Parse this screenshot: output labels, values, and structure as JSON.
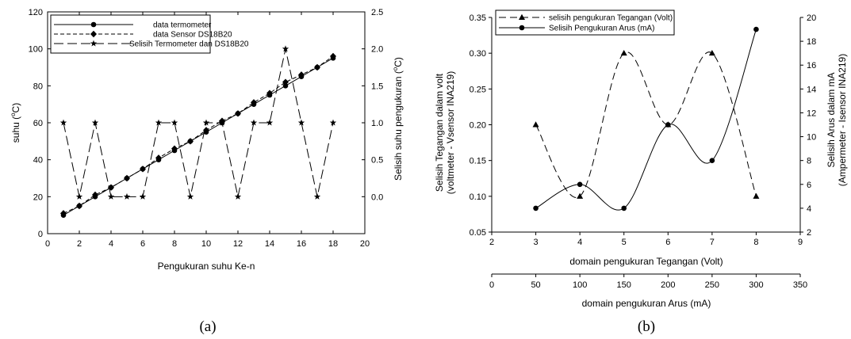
{
  "chart_data": [
    {
      "panel": "a",
      "type": "line",
      "caption": "(a)",
      "xlabel": "Pengukuran suhu Ke-n",
      "ylabel_left": "suhu (°C)",
      "ylabel_right": "Selisih suhu pengukuran (°C)",
      "xlim": [
        0,
        20
      ],
      "ylim_left": [
        0,
        120
      ],
      "ylim_right": [
        -0.5,
        2.5
      ],
      "x_ticks": [
        0,
        2,
        4,
        6,
        8,
        10,
        12,
        14,
        16,
        18,
        20
      ],
      "y_ticks_left": [
        0,
        20,
        40,
        60,
        80,
        100,
        120
      ],
      "y_ticks_right": [
        "0.0",
        "0.5",
        "1.0",
        "1.5",
        "2.0",
        "2.5"
      ],
      "grid": false,
      "legend_position": "top-left",
      "x": [
        1,
        2,
        3,
        4,
        5,
        6,
        7,
        8,
        9,
        10,
        11,
        12,
        13,
        14,
        15,
        16,
        17,
        18
      ],
      "series": [
        {
          "name": "data termometer",
          "axis": "left",
          "line": "solid",
          "marker": "circle",
          "values": [
            10,
            15,
            20,
            25,
            30,
            35,
            40,
            45,
            50,
            55,
            60,
            65,
            70,
            75,
            80,
            85,
            90,
            95
          ]
        },
        {
          "name": "data Sensor DS18B20",
          "axis": "left",
          "line": "short-dash",
          "marker": "diamond",
          "values": [
            11,
            15,
            21,
            25,
            30,
            35,
            41,
            46,
            50,
            56,
            61,
            65,
            71,
            76,
            82,
            86,
            90,
            96
          ]
        },
        {
          "name": "Selisih Termometer dan DS18B20",
          "axis": "right",
          "line": "long-dash",
          "marker": "star",
          "values": [
            1,
            0,
            1,
            0,
            0,
            0,
            1,
            1,
            0,
            1,
            1,
            0,
            1,
            1,
            2,
            1,
            0,
            1
          ]
        }
      ]
    },
    {
      "panel": "b",
      "type": "line",
      "caption": "(b)",
      "xlabel_top": "domain pengukuran Tegangan (Volt)",
      "xlabel_bottom": "domain pengukuran Arus (mA)",
      "ylabel_left": [
        "Selisih Tegangan dalam volt",
        "(voltmeter - Vsensor INA219)"
      ],
      "ylabel_right": [
        "Selisih Arus dalam mA",
        "(Ampermeter - Isensor INA219)"
      ],
      "xlim_top": [
        2,
        9
      ],
      "xlim_bottom": [
        0,
        350
      ],
      "ylim_left": [
        0.05,
        0.35
      ],
      "ylim_right": [
        2,
        20
      ],
      "x_ticks_top": [
        2,
        3,
        4,
        5,
        6,
        7,
        8,
        9
      ],
      "x_ticks_bottom": [
        0,
        50,
        100,
        150,
        200,
        250,
        300,
        350
      ],
      "y_ticks_left": [
        "0.05",
        "0.10",
        "0.15",
        "0.20",
        "0.25",
        "0.30",
        "0.35"
      ],
      "y_ticks_right": [
        2,
        4,
        6,
        8,
        10,
        12,
        14,
        16,
        18,
        20
      ],
      "grid": false,
      "legend_position": "top-left",
      "series": [
        {
          "name": "selisih pengukuran Tegangan (Volt)",
          "axis": "left",
          "line": "dashed",
          "marker": "triangle",
          "x": [
            3,
            4,
            5,
            6,
            7,
            8
          ],
          "values": [
            0.2,
            0.1,
            0.3,
            0.2,
            0.3,
            0.1
          ]
        },
        {
          "name": "Selisih Pengukuran Arus (mA)",
          "axis": "right",
          "line": "solid",
          "marker": "circle",
          "x": [
            50,
            100,
            150,
            200,
            250,
            300
          ],
          "values": [
            4,
            6,
            4,
            11,
            8,
            19
          ]
        }
      ]
    }
  ]
}
